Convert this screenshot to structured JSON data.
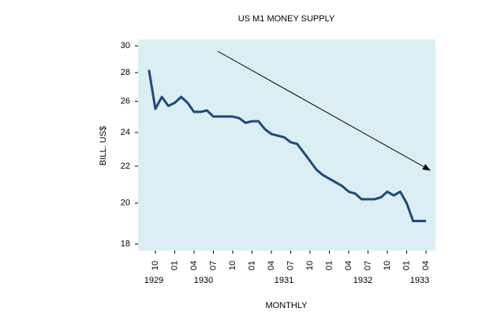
{
  "chart_data": {
    "type": "line",
    "title": "US M1 MONEY SUPPLY",
    "y_label": "BILL. US$",
    "x_label": "MONTHLY",
    "categories": [
      null,
      "10",
      null,
      null,
      "01",
      null,
      null,
      "04",
      null,
      null,
      "07",
      null,
      null,
      "10",
      null,
      null,
      "01",
      null,
      null,
      "04",
      null,
      null,
      "07",
      null,
      null,
      "10",
      null,
      null,
      "01",
      null,
      null,
      "04",
      null,
      null,
      "07",
      null,
      null,
      "10",
      null,
      null,
      "01",
      null,
      null,
      "04"
    ],
    "year_labels": [
      "1929",
      "1930",
      "1931",
      "1932",
      "1933"
    ],
    "series": [
      {
        "name": "US M1",
        "color": "#1f497d",
        "values": [
          28.2,
          25.5,
          26.3,
          25.7,
          25.9,
          26.3,
          25.9,
          25.3,
          25.3,
          25.4,
          25.0,
          25.0,
          25.0,
          25.0,
          24.9,
          24.6,
          24.7,
          24.7,
          24.2,
          23.9,
          23.8,
          23.7,
          23.4,
          23.3,
          22.8,
          22.3,
          21.8,
          21.5,
          21.3,
          21.1,
          20.9,
          20.6,
          20.5,
          20.2,
          20.2,
          20.2,
          20.3,
          20.6,
          20.4,
          20.6,
          20.0,
          19.1,
          19.1,
          19.1
        ]
      }
    ],
    "ylim": [
      17.7,
      30.5
    ],
    "yticks": [
      18,
      20,
      22,
      24,
      26,
      28,
      30
    ],
    "log_y": true,
    "plot_background": "#dbeef3"
  }
}
